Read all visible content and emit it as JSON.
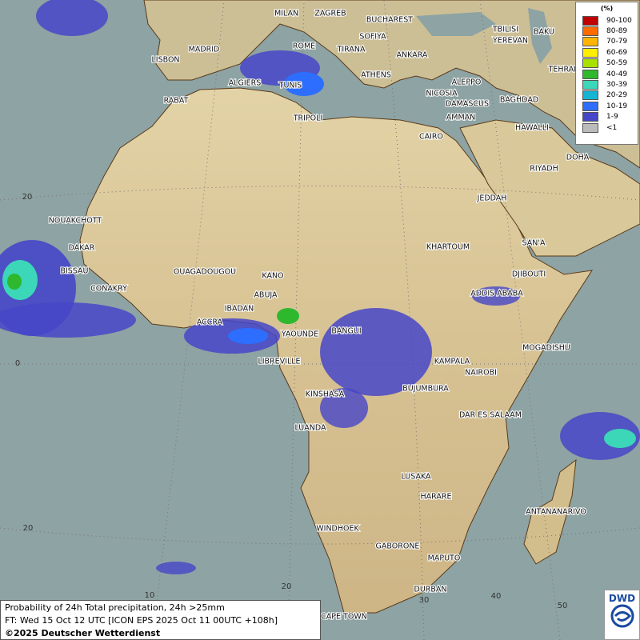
{
  "legend": {
    "title": "(%)",
    "entries": [
      {
        "label": "90-100",
        "color": "#c00000"
      },
      {
        "label": "80-89",
        "color": "#ff6a00"
      },
      {
        "label": "70-79",
        "color": "#ffb400"
      },
      {
        "label": "60-69",
        "color": "#ffee00"
      },
      {
        "label": "50-59",
        "color": "#a8e000"
      },
      {
        "label": "40-49",
        "color": "#2eb82e"
      },
      {
        "label": "30-39",
        "color": "#3cd6b8"
      },
      {
        "label": "20-29",
        "color": "#14b4d2"
      },
      {
        "label": "10-19",
        "color": "#2d6eff"
      },
      {
        "label": "1-9",
        "color": "#4646c8"
      },
      {
        "label": "<1",
        "color": "#bbbbbb"
      }
    ]
  },
  "cities": [
    "MILAN",
    "ZAGREB",
    "BUCHAREST",
    "SOFIYA",
    "TBILISI",
    "BAKU",
    "YEREVAN",
    "MADRID",
    "ROME",
    "TIRANA",
    "ANKARA",
    "LISBON",
    "TEHRAN",
    "ALGIERS",
    "TUNIS",
    "ATHENS",
    "ALEPPO",
    "RABAT",
    "NICOSIA",
    "BAGHDAD",
    "DAMASCUS",
    "AMMAN",
    "TRIPOLI",
    "HAWALLI",
    "CAIRO",
    "DOHA",
    "RIYADH",
    "JEDDAH",
    "NOUAKCHOTT",
    "SAN'A",
    "KHARTOUM",
    "DAKAR",
    "BISSAU",
    "OUAGADOUGOU",
    "DJIBOUTI",
    "KANO",
    "CONAKRY",
    "ABUJA",
    "ADDIS ABABA",
    "IBADAN",
    "ACCRA",
    "BANGUI",
    "YAOUNDE",
    "MOGADISHU",
    "LIBREVILLE",
    "KAMPALA",
    "NAIROBI",
    "KINSHASA",
    "BUJUMBURA",
    "DAR ES SALAAM",
    "LUANDA",
    "LUSAKA",
    "HARARE",
    "ANTANANARIVO",
    "WINDHOEK",
    "GABORONE",
    "MAPUTO",
    "DURBAN",
    "CAPE TOWN"
  ],
  "graticule_labels": [
    "20",
    "0",
    "20",
    "10",
    "20",
    "30",
    "40",
    "50"
  ],
  "footer": {
    "line1": "Probability of 24h Total precipitation, 24h >25mm",
    "line2": "FT: Wed 15 Oct 12 UTC [ICON EPS 2025 Oct 11 00UTC +108h]",
    "line3": "©2025 Deutscher Wetterdienst"
  },
  "logo": "DWD"
}
